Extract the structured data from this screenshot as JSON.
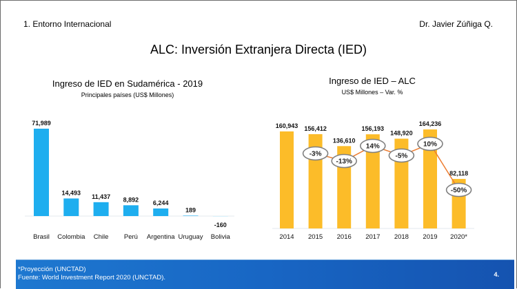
{
  "header": {
    "section": "1. Entorno Internacional",
    "author": "Dr. Javier Zúñiga Q.",
    "title": "ALC: Inversión Extranjera Directa (IED)"
  },
  "chart_data": [
    {
      "type": "bar",
      "title": "Ingreso de IED en Sudamérica - 2019",
      "subtitle": "Principales países (US$ Millones)",
      "categories": [
        "Brasil",
        "Colombia",
        "Chile",
        "Perú",
        "Argentina",
        "Uruguay",
        "Bolivia"
      ],
      "values": [
        71989,
        14493,
        11437,
        8892,
        6244,
        189,
        -160
      ],
      "labels": [
        "71,989",
        "14,493",
        "11,437",
        "8,892",
        "6,244",
        "189",
        "-160"
      ],
      "xlabel": "",
      "ylabel": "",
      "color": "#1eaeef",
      "grid": false
    },
    {
      "type": "bar",
      "title": "Ingreso de IED – ALC",
      "subtitle": "US$ Millones – Var. %",
      "categories": [
        "2014",
        "2015",
        "2016",
        "2017",
        "2018",
        "2019",
        "2020*"
      ],
      "values": [
        160943,
        156412,
        136610,
        156193,
        148920,
        164236,
        82118
      ],
      "labels": [
        "160,943",
        "156,412",
        "136,610",
        "156,193",
        "148,920",
        "164,236",
        "82,118"
      ],
      "series": [
        {
          "name": "Var. %",
          "type": "line",
          "values": [
            null,
            -3,
            -13,
            14,
            -5,
            10,
            -50
          ],
          "labels": [
            "",
            "-3%",
            "-13%",
            "14%",
            "-5%",
            "10%",
            "-50%"
          ]
        }
      ],
      "xlabel": "",
      "ylabel": "",
      "bar_color": "#fcbc29",
      "line_color": "#ed7d31",
      "grid": false
    }
  ],
  "footer": {
    "note": "*Proyección (UNCTAD)",
    "source": "Fuente: World Investment Report 2020 (UNCTAD).",
    "page": "4."
  }
}
